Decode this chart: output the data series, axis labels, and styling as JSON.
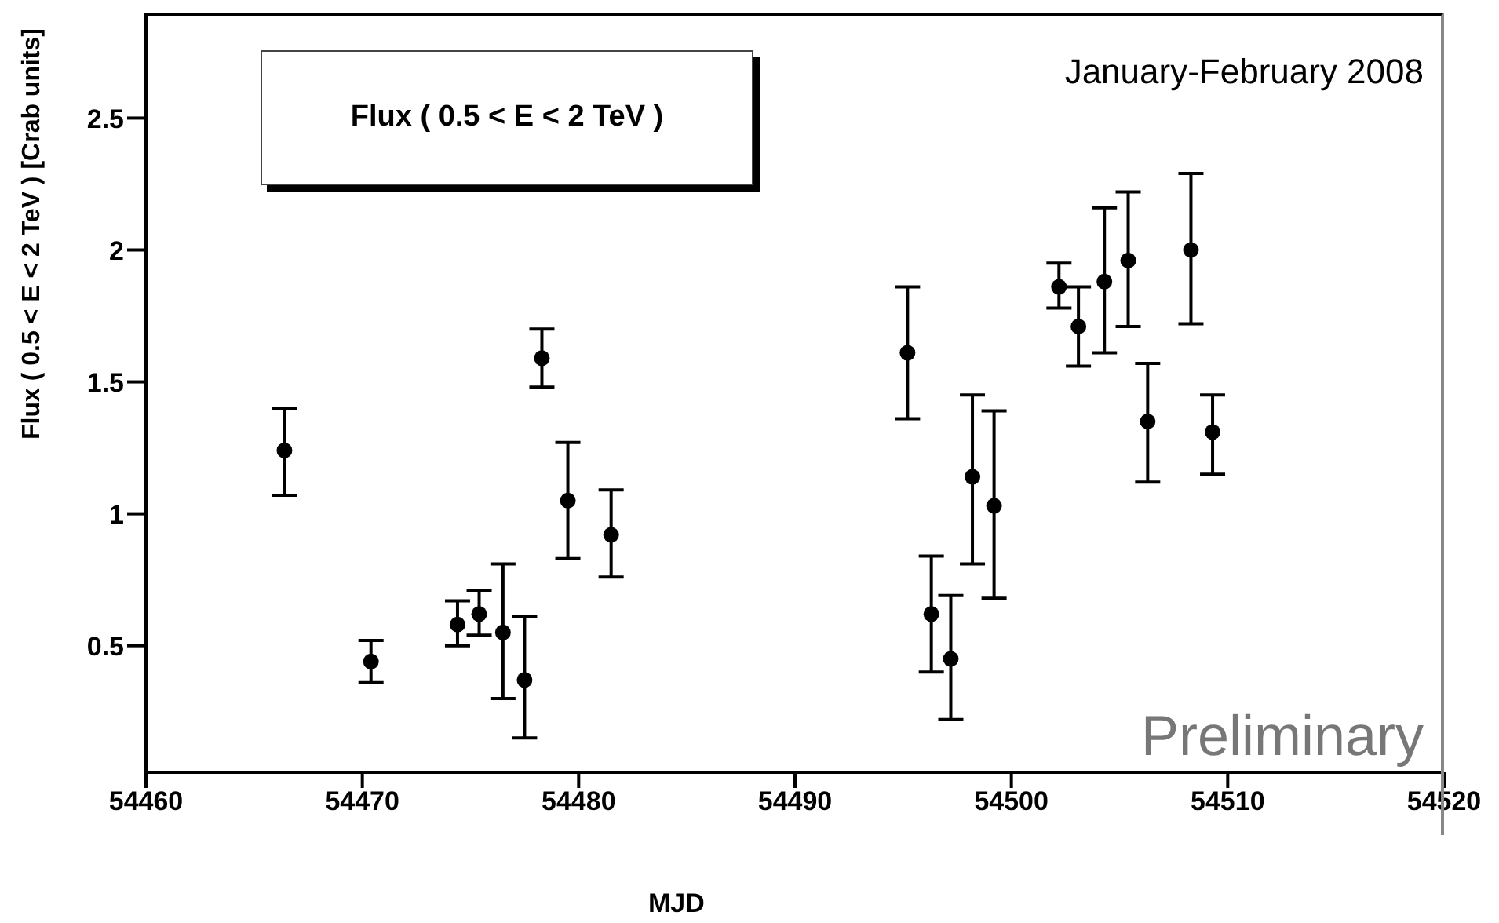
{
  "chart_data": {
    "type": "scatter",
    "title": "Flux ( 0.5 < E < 2 TeV )",
    "subtitle": "January-February 2008",
    "annotations": [
      "Preliminary"
    ],
    "xlabel": "MJD",
    "ylabel": "Flux ( 0.5 < E < 2 TeV )  [Crab units]",
    "x": [
      54466.4,
      54470.4,
      54474.4,
      54475.4,
      54476.5,
      54477.5,
      54478.3,
      54479.5,
      54481.5,
      54495.2,
      54496.3,
      54497.2,
      54498.2,
      54499.2,
      54502.2,
      54503.1,
      54504.3,
      54505.4,
      54506.3,
      54508.3,
      54509.3
    ],
    "series": [
      {
        "color": "#000000",
        "values": [
          1.24,
          0.44,
          0.58,
          0.62,
          0.55,
          0.37,
          1.59,
          1.05,
          0.92,
          1.61,
          0.62,
          0.45,
          1.14,
          1.03,
          1.86,
          1.71,
          1.88,
          1.96,
          1.35,
          2.0,
          1.31
        ],
        "errors": [
          [
            1.07,
            1.4
          ],
          [
            0.36,
            0.52
          ],
          [
            0.5,
            0.67
          ],
          [
            0.54,
            0.71
          ],
          [
            0.3,
            0.81
          ],
          [
            0.15,
            0.61
          ],
          [
            1.48,
            1.7
          ],
          [
            0.83,
            1.27
          ],
          [
            0.76,
            1.09
          ],
          [
            1.36,
            1.86
          ],
          [
            0.4,
            0.84
          ],
          [
            0.22,
            0.69
          ],
          [
            0.81,
            1.45
          ],
          [
            0.68,
            1.39
          ],
          [
            1.78,
            1.95
          ],
          [
            1.56,
            1.86
          ],
          [
            1.61,
            2.16
          ],
          [
            1.71,
            2.22
          ],
          [
            1.12,
            1.57
          ],
          [
            1.72,
            2.29
          ],
          [
            1.15,
            1.45
          ]
        ]
      }
    ],
    "xlim": [
      54460,
      54520
    ],
    "ylim": [
      0.02,
      2.9
    ],
    "xticks": [
      54460,
      54470,
      54480,
      54490,
      54500,
      54510,
      54520
    ],
    "yticks": [
      0.5,
      1,
      1.5,
      2,
      2.5
    ],
    "marker": "circle",
    "grid": false
  }
}
